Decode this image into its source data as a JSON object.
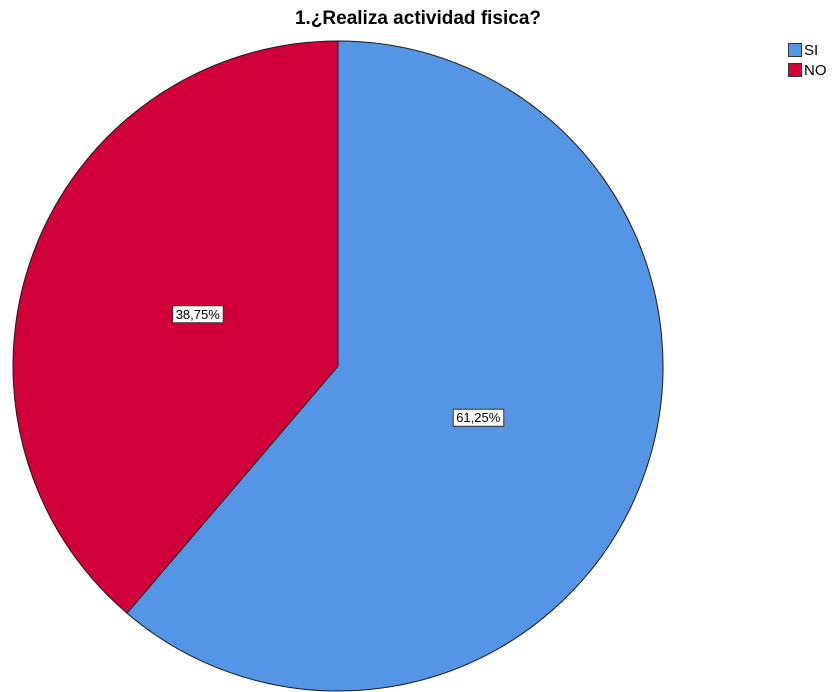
{
  "chart_data": {
    "type": "pie",
    "title": "1.¿Realiza actividad fisica?",
    "categories": [
      "SI",
      "NO"
    ],
    "values": [
      61.25,
      38.75
    ],
    "labels": [
      "61,25%",
      "38,75%"
    ],
    "colors": [
      "#5495e6",
      "#d1003a"
    ],
    "legend": {
      "placement": "top-right",
      "entries": [
        "SI",
        "NO"
      ]
    }
  }
}
